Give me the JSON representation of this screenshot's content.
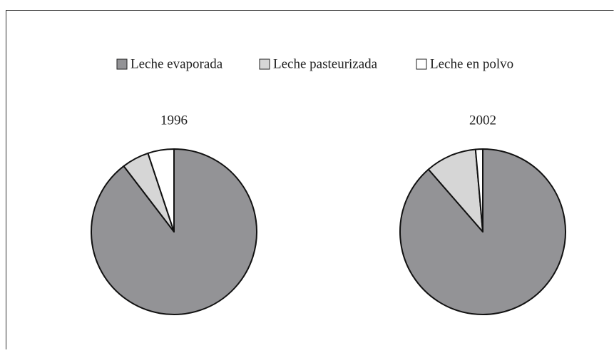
{
  "chart_data": [
    {
      "type": "pie",
      "title": "1996",
      "categories": [
        "Leche evaporada",
        "Leche pasteurizada",
        "Leche en polvo"
      ],
      "values": [
        89.6,
        5.3,
        5.1
      ],
      "colors": [
        "#939396",
        "#d6d6d6",
        "#ffffff"
      ],
      "legend": "top"
    },
    {
      "type": "pie",
      "title": "2002",
      "categories": [
        "Leche evaporada",
        "Leche pasteurizada",
        "Leche en polvo"
      ],
      "values": [
        88.6,
        10,
        1.4
      ],
      "colors": [
        "#939396",
        "#d6d6d6",
        "#ffffff"
      ],
      "legend": "top"
    }
  ]
}
